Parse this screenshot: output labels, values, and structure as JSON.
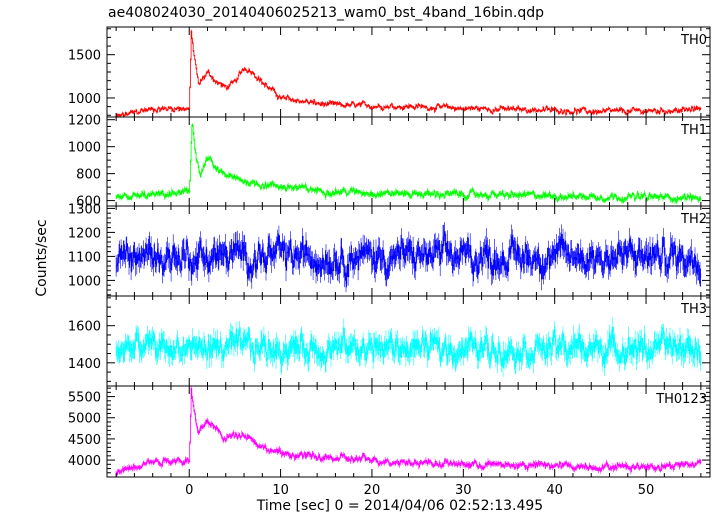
{
  "chart_data": {
    "type": "line",
    "title": "ae408024030_20140406025213_wam0_bst_4band_16bin.qdp",
    "xlabel": "Time [sec] 0 = 2014/04/06 02:52:13.495",
    "ylabel": "Counts/sec",
    "xlim": [
      -9,
      57
    ],
    "x_ticks": [
      0,
      10,
      20,
      30,
      40,
      50
    ],
    "grid": false,
    "panels": [
      {
        "name": "TH0",
        "color": "#ff0000",
        "ylim": [
          780,
          1820
        ],
        "y_ticks": [
          1000,
          1500
        ],
        "y_minor": 100,
        "baseline": 870,
        "noise": 25,
        "jitter": 40,
        "error": 15,
        "x": [
          -8,
          -5,
          -2,
          0,
          0.2,
          0.5,
          1,
          2,
          3,
          4,
          5,
          6,
          7,
          8,
          10,
          15,
          20,
          25,
          30,
          35,
          40,
          45,
          50,
          55,
          56
        ],
        "y": [
          780,
          860,
          880,
          880,
          1760,
          1500,
          1150,
          1300,
          1180,
          1120,
          1180,
          1350,
          1300,
          1180,
          1000,
          920,
          910,
          900,
          880,
          870,
          860,
          840,
          850,
          860,
          900
        ]
      },
      {
        "name": "TH1",
        "color": "#00ff00",
        "ylim": [
          560,
          1220
        ],
        "y_ticks": [
          600,
          800,
          1000,
          1200
        ],
        "y_minor": 50,
        "baseline": 650,
        "noise": 20,
        "jitter": 30,
        "error": 15,
        "x": [
          -8,
          -2,
          0,
          0.3,
          0.7,
          1.2,
          2,
          3,
          5,
          8,
          15,
          25,
          35,
          45,
          56
        ],
        "y": [
          620,
          650,
          660,
          1200,
          950,
          780,
          920,
          820,
          760,
          720,
          670,
          650,
          640,
          630,
          620
        ]
      },
      {
        "name": "TH2",
        "color": "#0000ff",
        "ylim": [
          935,
          1310
        ],
        "y_ticks": [
          1000,
          1100,
          1200,
          1300
        ],
        "y_minor": 20,
        "baseline": 1110,
        "noise": 55,
        "jitter": 60,
        "error": 40,
        "x": [
          -8,
          56
        ],
        "y": [
          1100,
          1100
        ]
      },
      {
        "name": "TH3",
        "color": "#00ffff",
        "ylim": [
          1275,
          1760
        ],
        "y_ticks": [
          1400,
          1600
        ],
        "y_minor": 50,
        "baseline": 1480,
        "noise": 60,
        "jitter": 70,
        "error": 45,
        "x": [
          -8,
          56
        ],
        "y": [
          1480,
          1480
        ]
      },
      {
        "name": "TH0123",
        "color": "#ff00ff",
        "ylim": [
          3600,
          5750
        ],
        "y_ticks": [
          4000,
          4500,
          5000,
          5500
        ],
        "y_minor": 100,
        "baseline": 3950,
        "noise": 70,
        "jitter": 90,
        "error": 50,
        "x": [
          -8,
          -5,
          -2,
          0,
          0.2,
          0.5,
          1,
          2,
          3,
          4,
          5,
          6,
          8,
          10,
          15,
          20,
          25,
          30,
          35,
          40,
          45,
          50,
          55,
          56
        ],
        "y": [
          3700,
          3950,
          4000,
          4000,
          5700,
          5150,
          4600,
          4950,
          4700,
          4500,
          4600,
          4650,
          4300,
          4150,
          4050,
          4000,
          3950,
          3900,
          3880,
          3870,
          3850,
          3850,
          3900,
          3950
        ]
      }
    ]
  }
}
